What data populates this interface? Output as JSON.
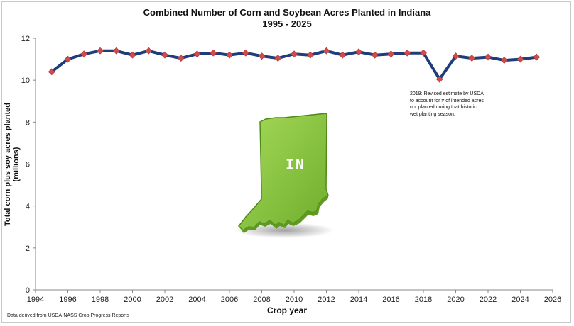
{
  "chart_data": {
    "type": "line",
    "title": "Combined Number of Corn and Soybean Acres Planted in Indiana",
    "subtitle": "1995 - 2025",
    "xlabel": "Crop year",
    "ylabel": "Total corn plus soy acres planted (millions)",
    "xlim": [
      1994,
      2026
    ],
    "ylim": [
      0,
      12
    ],
    "x_ticks": [
      "1994",
      "1996",
      "1998",
      "2000",
      "2002",
      "2004",
      "2006",
      "2008",
      "2010",
      "2012",
      "2014",
      "2016",
      "2018",
      "2020",
      "2022",
      "2024",
      "2026"
    ],
    "y_ticks": [
      "0",
      "2",
      "4",
      "6",
      "8",
      "10",
      "12"
    ],
    "grid": false,
    "series": [
      {
        "x": [
          1995,
          1996,
          1997,
          1998,
          1999,
          2000,
          2001,
          2002,
          2003,
          2004,
          2005,
          2006,
          2007,
          2008,
          2009,
          2010,
          2011,
          2012,
          2013,
          2014,
          2015,
          2016,
          2017,
          2018,
          2019,
          2020,
          2021,
          2022,
          2023,
          2024,
          2025
        ],
        "y": [
          10.4,
          11.0,
          11.25,
          11.4,
          11.4,
          11.2,
          11.4,
          11.2,
          11.05,
          11.25,
          11.3,
          11.2,
          11.3,
          11.15,
          11.05,
          11.25,
          11.2,
          11.4,
          11.2,
          11.35,
          11.2,
          11.25,
          11.3,
          11.3,
          10.05,
          11.15,
          11.05,
          11.1,
          10.95,
          11.0,
          11.1
        ]
      }
    ],
    "annotation": "2019: Revised estimate by USDA to account for # of intended acres not planted during that historic wet planting season.",
    "source": "Data derived from USDA-NASS Crop Progress Reports",
    "map_label": "IN",
    "colors": {
      "line": "#1f3d7a",
      "marker": "#d24b4b",
      "state": "#8cc63f",
      "state_dark": "#5f9a22"
    }
  }
}
